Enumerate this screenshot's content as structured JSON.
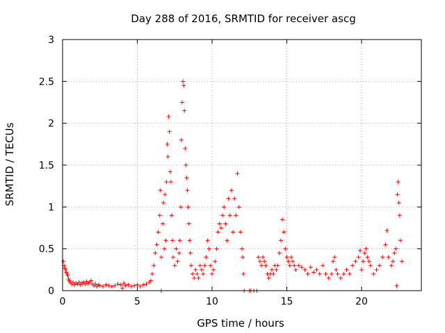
{
  "chart_data": {
    "type": "scatter",
    "title": "Day 288 of 2016, SRMTID for receiver ascg",
    "xlabel": "GPS time / hours",
    "ylabel": "SRMTID / TECUs",
    "xlim": [
      0,
      24
    ],
    "ylim": [
      0,
      3
    ],
    "grid": true,
    "marker": "+",
    "marker_color": "#ff0000",
    "x_ticks": [
      "0",
      "5",
      "10",
      "15",
      "20"
    ],
    "y_ticks": [
      "0",
      "0.5",
      "1",
      "1.5",
      "2",
      "2.5",
      "3"
    ],
    "series": [
      {
        "name": "SRMTID",
        "points": [
          [
            0.05,
            0.35
          ],
          [
            0.1,
            0.3
          ],
          [
            0.15,
            0.27
          ],
          [
            0.2,
            0.25
          ],
          [
            0.25,
            0.22
          ],
          [
            0.3,
            0.2
          ],
          [
            0.35,
            0.18
          ],
          [
            0.4,
            0.14
          ],
          [
            0.45,
            0.12
          ],
          [
            0.5,
            0.1
          ],
          [
            0.6,
            0.08
          ],
          [
            0.7,
            0.1
          ],
          [
            0.8,
            0.07
          ],
          [
            0.9,
            0.09
          ],
          [
            1.0,
            0.08
          ],
          [
            1.1,
            0.1
          ],
          [
            1.2,
            0.07
          ],
          [
            1.3,
            0.09
          ],
          [
            1.4,
            0.1
          ],
          [
            1.5,
            0.08
          ],
          [
            1.6,
            0.11
          ],
          [
            1.7,
            0.09
          ],
          [
            1.8,
            0.1
          ],
          [
            1.9,
            0.12
          ],
          [
            2.0,
            0.08
          ],
          [
            2.1,
            0.06
          ],
          [
            2.2,
            0.08
          ],
          [
            2.3,
            0.05
          ],
          [
            2.4,
            0.07
          ],
          [
            2.5,
            0.06
          ],
          [
            2.7,
            0.05
          ],
          [
            2.9,
            0.07
          ],
          [
            3.1,
            0.06
          ],
          [
            3.3,
            0.05
          ],
          [
            3.5,
            0.06
          ],
          [
            3.7,
            0.08
          ],
          [
            3.9,
            0.07
          ],
          [
            4.0,
            0.03
          ],
          [
            4.1,
            0.09
          ],
          [
            4.2,
            0.06
          ],
          [
            4.4,
            0.07
          ],
          [
            4.6,
            0.05
          ],
          [
            4.8,
            0.06
          ],
          [
            5.0,
            0.07
          ],
          [
            5.2,
            0.05
          ],
          [
            5.4,
            0.07
          ],
          [
            5.6,
            0.08
          ],
          [
            5.8,
            0.1
          ],
          [
            5.9,
            0.12
          ],
          [
            6.0,
            0.2
          ],
          [
            6.1,
            0.3
          ],
          [
            6.2,
            0.45
          ],
          [
            6.3,
            0.55
          ],
          [
            6.4,
            0.7
          ],
          [
            6.5,
            0.9
          ],
          [
            6.55,
            1.2
          ],
          [
            6.6,
            0.4
          ],
          [
            6.6,
            0.0
          ],
          [
            6.7,
            0.8
          ],
          [
            6.75,
            1.05
          ],
          [
            6.8,
            0.5
          ],
          [
            6.85,
            1.15
          ],
          [
            6.9,
            0.6
          ],
          [
            6.95,
            1.3
          ],
          [
            7.0,
            1.75
          ],
          [
            7.05,
            1.6
          ],
          [
            7.1,
            2.08
          ],
          [
            7.15,
            1.9
          ],
          [
            7.2,
            1.42
          ],
          [
            7.25,
            1.3
          ],
          [
            7.3,
            0.9
          ],
          [
            7.35,
            0.6
          ],
          [
            7.4,
            0.4
          ],
          [
            7.5,
            0.3
          ],
          [
            7.6,
            0.5
          ],
          [
            7.7,
            0.35
          ],
          [
            7.8,
            0.45
          ],
          [
            7.85,
            0.6
          ],
          [
            7.9,
            1.0
          ],
          [
            7.95,
            1.8
          ],
          [
            8.0,
            2.25
          ],
          [
            8.05,
            2.5
          ],
          [
            8.1,
            2.45
          ],
          [
            8.15,
            2.15
          ],
          [
            8.2,
            1.7
          ],
          [
            8.25,
            1.5
          ],
          [
            8.3,
            1.35
          ],
          [
            8.35,
            1.2
          ],
          [
            8.4,
            1.0
          ],
          [
            8.45,
            0.8
          ],
          [
            8.5,
            0.6
          ],
          [
            8.55,
            0.45
          ],
          [
            8.6,
            0.3
          ],
          [
            8.7,
            0.2
          ],
          [
            8.8,
            0.15
          ],
          [
            8.9,
            0.25
          ],
          [
            9.0,
            0.2
          ],
          [
            9.1,
            0.15
          ],
          [
            9.2,
            0.3
          ],
          [
            9.3,
            0.25
          ],
          [
            9.4,
            0.2
          ],
          [
            9.5,
            0.3
          ],
          [
            9.6,
            0.4
          ],
          [
            9.7,
            0.6
          ],
          [
            9.8,
            0.5
          ],
          [
            9.9,
            0.3
          ],
          [
            10.0,
            0.2
          ],
          [
            10.1,
            0.25
          ],
          [
            10.2,
            0.35
          ],
          [
            10.3,
            0.5
          ],
          [
            10.4,
            0.7
          ],
          [
            10.5,
            0.8
          ],
          [
            10.6,
            0.75
          ],
          [
            10.7,
            0.9
          ],
          [
            10.8,
            1.0
          ],
          [
            10.9,
            0.8
          ],
          [
            11.0,
            0.6
          ],
          [
            11.1,
            1.1
          ],
          [
            11.2,
            0.9
          ],
          [
            11.3,
            1.2
          ],
          [
            11.4,
            0.7
          ],
          [
            11.5,
            1.1
          ],
          [
            11.6,
            0.9
          ],
          [
            11.7,
            1.4
          ],
          [
            11.8,
            1.0
          ],
          [
            11.9,
            0.7
          ],
          [
            12.0,
            0.5
          ],
          [
            12.05,
            0.4
          ],
          [
            12.1,
            0.2
          ],
          [
            12.15,
            0.0
          ],
          [
            12.5,
            0.0
          ],
          [
            12.6,
            0.0
          ],
          [
            12.8,
            0.0
          ],
          [
            13.0,
            0.0
          ],
          [
            13.1,
            0.4
          ],
          [
            13.2,
            0.35
          ],
          [
            13.3,
            0.3
          ],
          [
            13.4,
            0.4
          ],
          [
            13.5,
            0.35
          ],
          [
            13.6,
            0.3
          ],
          [
            13.7,
            0.2
          ],
          [
            13.8,
            0.15
          ],
          [
            13.9,
            0.2
          ],
          [
            14.0,
            0.25
          ],
          [
            14.1,
            0.2
          ],
          [
            14.2,
            0.3
          ],
          [
            14.3,
            0.25
          ],
          [
            14.4,
            0.3
          ],
          [
            14.5,
            0.45
          ],
          [
            14.6,
            0.6
          ],
          [
            14.7,
            0.85
          ],
          [
            14.8,
            0.7
          ],
          [
            14.9,
            0.5
          ],
          [
            15.0,
            0.4
          ],
          [
            15.1,
            0.35
          ],
          [
            15.2,
            0.3
          ],
          [
            15.3,
            0.4
          ],
          [
            15.4,
            0.35
          ],
          [
            15.5,
            0.3
          ],
          [
            15.6,
            0.25
          ],
          [
            15.8,
            0.3
          ],
          [
            16.0,
            0.28
          ],
          [
            16.2,
            0.25
          ],
          [
            16.4,
            0.2
          ],
          [
            16.6,
            0.28
          ],
          [
            16.8,
            0.22
          ],
          [
            17.0,
            0.25
          ],
          [
            17.2,
            0.2
          ],
          [
            17.4,
            0.3
          ],
          [
            17.6,
            0.2
          ],
          [
            17.8,
            0.15
          ],
          [
            18.0,
            0.2
          ],
          [
            18.1,
            0.35
          ],
          [
            18.2,
            0.4
          ],
          [
            18.3,
            0.25
          ],
          [
            18.4,
            0.2
          ],
          [
            18.6,
            0.15
          ],
          [
            18.8,
            0.2
          ],
          [
            19.0,
            0.25
          ],
          [
            19.2,
            0.2
          ],
          [
            19.4,
            0.3
          ],
          [
            19.6,
            0.35
          ],
          [
            19.8,
            0.4
          ],
          [
            19.9,
            0.48
          ],
          [
            20.0,
            0.25
          ],
          [
            20.1,
            0.35
          ],
          [
            20.2,
            0.45
          ],
          [
            20.3,
            0.5
          ],
          [
            20.4,
            0.4
          ],
          [
            20.5,
            0.35
          ],
          [
            20.6,
            0.3
          ],
          [
            20.8,
            0.2
          ],
          [
            21.0,
            0.25
          ],
          [
            21.2,
            0.3
          ],
          [
            21.4,
            0.4
          ],
          [
            21.6,
            0.55
          ],
          [
            21.7,
            0.72
          ],
          [
            21.8,
            0.4
          ],
          [
            22.0,
            0.3
          ],
          [
            22.1,
            0.35
          ],
          [
            22.2,
            0.45
          ],
          [
            22.3,
            0.5
          ],
          [
            22.35,
            0.06
          ],
          [
            22.4,
            1.15
          ],
          [
            22.45,
            1.3
          ],
          [
            22.5,
            1.05
          ],
          [
            22.55,
            0.9
          ],
          [
            22.6,
            0.6
          ],
          [
            22.7,
            0.35
          ]
        ]
      }
    ]
  }
}
